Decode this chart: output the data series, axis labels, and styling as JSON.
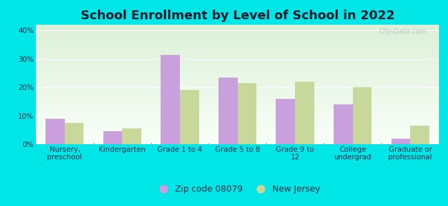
{
  "title": "School Enrollment by Level of School in 2022",
  "categories": [
    "Nursery,\npreschool",
    "Kindergarten",
    "Grade 1 to 4",
    "Grade 5 to 8",
    "Grade 9 to\n12",
    "College\nundergrad",
    "Graduate or\nprofessional"
  ],
  "zip_values": [
    9.0,
    4.5,
    31.5,
    23.5,
    16.0,
    14.0,
    2.0
  ],
  "nj_values": [
    7.5,
    5.5,
    19.0,
    21.5,
    22.0,
    20.0,
    6.5
  ],
  "zip_color": "#c9a0dc",
  "nj_color": "#c8d89a",
  "zip_label": "Zip code 08079",
  "nj_label": "New Jersey",
  "ylim": [
    0,
    42
  ],
  "yticks": [
    0,
    10,
    20,
    30,
    40
  ],
  "ytick_labels": [
    "0%",
    "10%",
    "20%",
    "30%",
    "40%"
  ],
  "background_color": "#00e5e5",
  "plot_bg_top": "#ddf0d8",
  "plot_bg_bottom": "#f8fff8",
  "watermark": "City-Data.com",
  "title_fontsize": 13,
  "legend_fontsize": 9,
  "tick_fontsize": 7.5,
  "title_color": "#1a1a2e",
  "tick_color": "#2a2a4a"
}
